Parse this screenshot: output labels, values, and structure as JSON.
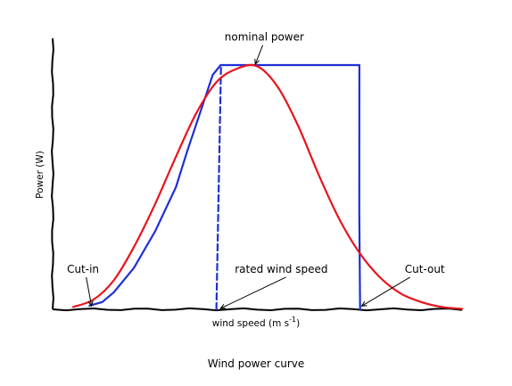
{
  "chart_data": {
    "type": "line",
    "title": "",
    "caption": "Wind power curve",
    "xlabel": "wind speed (m s",
    "xlabel_exponent": "-1",
    "xlabel_suffix": ")",
    "ylabel": "Power (W)",
    "xlim": [
      0,
      10
    ],
    "ylim": [
      0,
      10
    ],
    "ticks": "none",
    "grid": false,
    "style": "hand-drawn (xkcd)",
    "colors": {
      "ideal": "#1f2fd6",
      "actual": "#e8141c",
      "axes": "#000000"
    },
    "series": [
      {
        "key": "ideal",
        "style": "solid",
        "x": [
          0.9,
          1.2,
          1.5,
          2.0,
          2.5,
          3.0,
          3.3,
          3.6,
          3.9,
          4.1,
          4.3,
          4.6,
          5.0,
          5.5,
          6.0,
          6.5,
          7.0,
          7.5,
          7.5,
          7.5
        ],
        "y": [
          0.15,
          0.3,
          0.7,
          1.7,
          3.2,
          5.0,
          6.5,
          8.0,
          9.6,
          10.0,
          10.0,
          10.0,
          10.0,
          10.0,
          10.0,
          10.0,
          10.0,
          10.0,
          4.0,
          0.0
        ]
      },
      {
        "key": "rated-marker",
        "style": "dashed",
        "x": [
          4.0,
          4.1
        ],
        "y": [
          0.0,
          10.0
        ]
      },
      {
        "key": "actual",
        "style": "solid",
        "x": [
          0.5,
          1.0,
          1.5,
          2.0,
          2.5,
          3.0,
          3.5,
          4.0,
          4.5,
          5.0,
          5.5,
          6.0,
          6.5,
          7.0,
          7.5,
          8.0,
          8.5,
          9.0,
          9.5,
          10.0
        ],
        "y": [
          0.1,
          0.4,
          1.2,
          2.6,
          4.3,
          6.2,
          8.0,
          9.3,
          9.85,
          9.95,
          9.1,
          7.5,
          5.5,
          3.7,
          2.3,
          1.3,
          0.65,
          0.3,
          0.1,
          0.02
        ]
      }
    ],
    "annotations": [
      {
        "key": "nominal",
        "text": "nominal power",
        "xy": [
          4.95,
          10.0
        ],
        "xytext": [
          4.2,
          11.0
        ]
      },
      {
        "key": "cut-in",
        "text": "Cut-in",
        "xy": [
          0.95,
          0.1
        ],
        "xytext": [
          0.35,
          1.5
        ]
      },
      {
        "key": "rated",
        "text": "rated wind speed",
        "xy": [
          4.1,
          0.0
        ],
        "xytext": [
          4.45,
          1.5
        ]
      },
      {
        "key": "cut-out",
        "text": "Cut-out",
        "xy": [
          7.55,
          0.1
        ],
        "xytext": [
          8.6,
          1.5
        ]
      }
    ]
  }
}
